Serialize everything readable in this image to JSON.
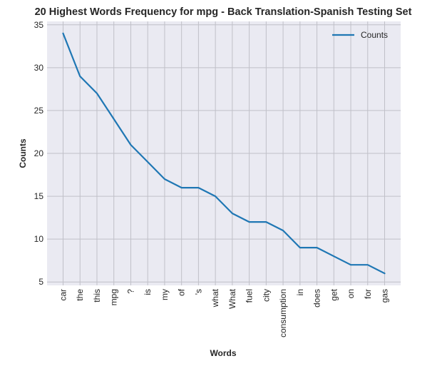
{
  "chart_data": {
    "type": "line",
    "title": "20 Highest Words Frequency for mpg - Back Translation-Spanish Testing Set",
    "xlabel": "Words",
    "ylabel": "Counts",
    "categories": [
      "car",
      "the",
      "this",
      "mpg",
      "?",
      "is",
      "my",
      "of",
      "'s",
      "what",
      "What",
      "fuel",
      "city",
      "consumption",
      "in",
      "does",
      "get",
      "on",
      "for",
      "gas"
    ],
    "series": [
      {
        "name": "Counts",
        "values": [
          34,
          29,
          27,
          24,
          21,
          19,
          17,
          16,
          16,
          15,
          13,
          12,
          12,
          11,
          9,
          9,
          8,
          7,
          7,
          6
        ],
        "color": "#1f77b4"
      }
    ],
    "yticks": [
      5,
      10,
      15,
      20,
      25,
      30,
      35
    ],
    "ylim": [
      4.6,
      35.4
    ],
    "grid": true,
    "legend_position": "top-right",
    "background": "#eaeaf2",
    "grid_color": "#c0c0c8"
  }
}
